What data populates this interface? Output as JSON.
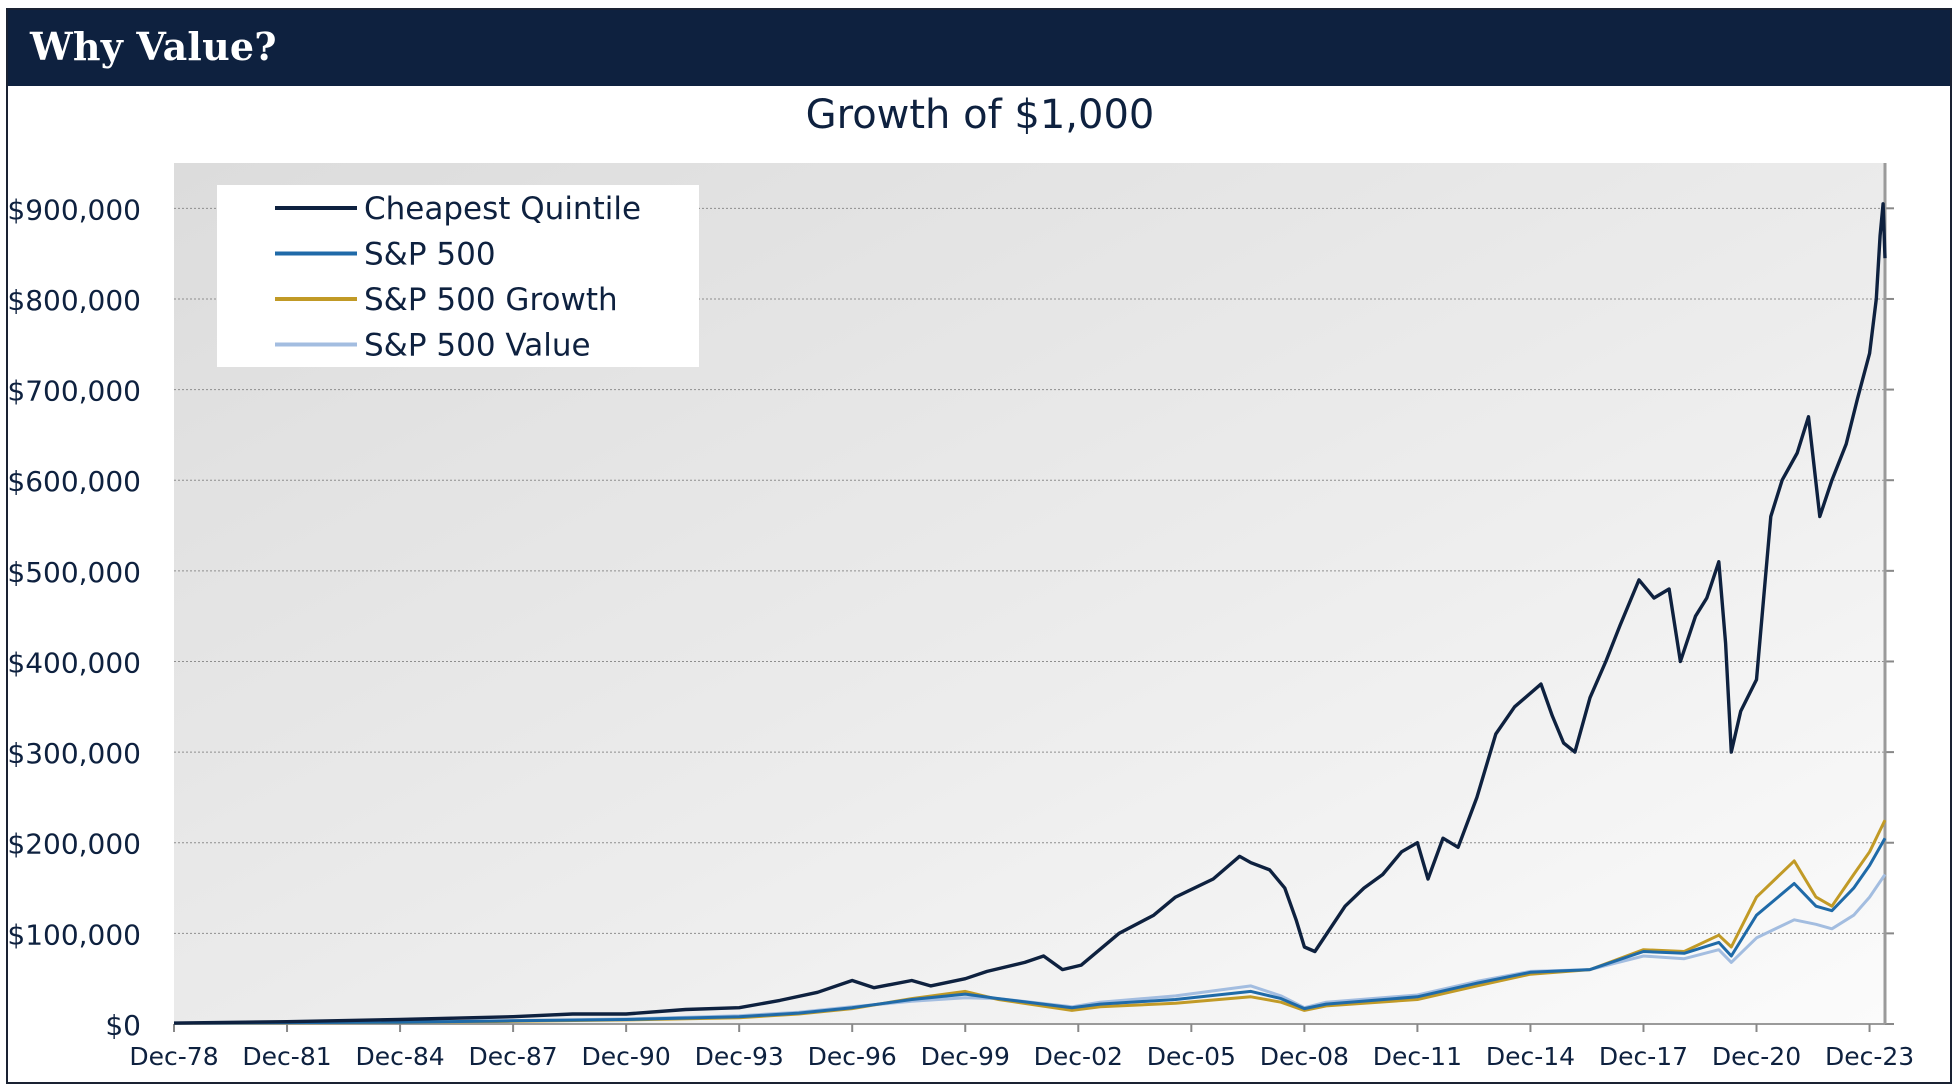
{
  "header": {
    "title": "Why Value?"
  },
  "chart_data": {
    "type": "line",
    "title": "Growth of $1,000",
    "xlabel": "",
    "ylabel": "",
    "ylim": [
      0,
      950000
    ],
    "y_ticks": [
      0,
      100000,
      200000,
      300000,
      400000,
      500000,
      600000,
      700000,
      800000,
      900000
    ],
    "y_tick_labels": [
      "$0",
      "$100,000",
      "$200,000",
      "$300,000",
      "$400,000",
      "$500,000",
      "$600,000",
      "$700,000",
      "$800,000",
      "$900,000"
    ],
    "x_range": [
      1978.92,
      2024.33
    ],
    "x_ticks": [
      1978.92,
      1981.92,
      1984.92,
      1987.92,
      1990.92,
      1993.92,
      1996.92,
      1999.92,
      2002.92,
      2005.92,
      2008.92,
      2011.92,
      2014.92,
      2017.92,
      2020.92,
      2023.92
    ],
    "x_tick_labels": [
      "Dec-78",
      "Dec-81",
      "Dec-84",
      "Dec-87",
      "Dec-90",
      "Dec-93",
      "Dec-96",
      "Dec-99",
      "Dec-02",
      "Dec-05",
      "Dec-08",
      "Dec-11",
      "Dec-14",
      "Dec-17",
      "Dec-20",
      "Dec-23"
    ],
    "grid": "horizontal dotted",
    "legend_position": "top-left",
    "series": [
      {
        "name": "Cheapest Quintile",
        "color": "#0e213f",
        "points": [
          [
            1978.92,
            1000
          ],
          [
            1981.92,
            2500
          ],
          [
            1984.92,
            5000
          ],
          [
            1987.92,
            8000
          ],
          [
            1989.5,
            11000
          ],
          [
            1990.92,
            11000
          ],
          [
            1992.5,
            16000
          ],
          [
            1993.92,
            18000
          ],
          [
            1995.0,
            26000
          ],
          [
            1996.0,
            35000
          ],
          [
            1996.92,
            48000
          ],
          [
            1997.5,
            40000
          ],
          [
            1998.5,
            48000
          ],
          [
            1999.0,
            42000
          ],
          [
            1999.92,
            50000
          ],
          [
            2000.5,
            58000
          ],
          [
            2001.5,
            68000
          ],
          [
            2002.0,
            75000
          ],
          [
            2002.5,
            60000
          ],
          [
            2003.0,
            65000
          ],
          [
            2004.0,
            100000
          ],
          [
            2004.92,
            120000
          ],
          [
            2005.5,
            140000
          ],
          [
            2006.5,
            160000
          ],
          [
            2007.2,
            185000
          ],
          [
            2007.5,
            178000
          ],
          [
            2008.0,
            170000
          ],
          [
            2008.4,
            150000
          ],
          [
            2008.7,
            115000
          ],
          [
            2008.92,
            85000
          ],
          [
            2009.2,
            80000
          ],
          [
            2010.0,
            130000
          ],
          [
            2010.5,
            150000
          ],
          [
            2011.0,
            165000
          ],
          [
            2011.5,
            190000
          ],
          [
            2011.92,
            200000
          ],
          [
            2012.2,
            160000
          ],
          [
            2012.6,
            205000
          ],
          [
            2013.0,
            195000
          ],
          [
            2013.5,
            250000
          ],
          [
            2014.0,
            320000
          ],
          [
            2014.5,
            350000
          ],
          [
            2015.2,
            375000
          ],
          [
            2015.5,
            340000
          ],
          [
            2015.8,
            310000
          ],
          [
            2016.1,
            300000
          ],
          [
            2016.5,
            360000
          ],
          [
            2016.92,
            400000
          ],
          [
            2017.3,
            440000
          ],
          [
            2017.8,
            490000
          ],
          [
            2018.2,
            470000
          ],
          [
            2018.6,
            480000
          ],
          [
            2018.9,
            400000
          ],
          [
            2019.3,
            450000
          ],
          [
            2019.6,
            470000
          ],
          [
            2019.92,
            510000
          ],
          [
            2020.1,
            420000
          ],
          [
            2020.25,
            300000
          ],
          [
            2020.5,
            345000
          ],
          [
            2020.92,
            380000
          ],
          [
            2021.3,
            560000
          ],
          [
            2021.6,
            600000
          ],
          [
            2022.0,
            630000
          ],
          [
            2022.3,
            670000
          ],
          [
            2022.6,
            560000
          ],
          [
            2022.92,
            600000
          ],
          [
            2023.3,
            640000
          ],
          [
            2023.6,
            690000
          ],
          [
            2023.92,
            740000
          ],
          [
            2024.1,
            800000
          ],
          [
            2024.2,
            870000
          ],
          [
            2024.28,
            905000
          ],
          [
            2024.33,
            845000
          ]
        ]
      },
      {
        "name": "S&P 500",
        "color": "#1f6aa8",
        "points": [
          [
            1978.92,
            1000
          ],
          [
            1984.92,
            2000
          ],
          [
            1987.92,
            3500
          ],
          [
            1990.92,
            5000
          ],
          [
            1993.92,
            8000
          ],
          [
            1995.5,
            12000
          ],
          [
            1996.92,
            18000
          ],
          [
            1998.5,
            27000
          ],
          [
            1999.92,
            33000
          ],
          [
            2000.8,
            28000
          ],
          [
            2002.75,
            18000
          ],
          [
            2003.5,
            22000
          ],
          [
            2005.5,
            27000
          ],
          [
            2007.5,
            36000
          ],
          [
            2008.3,
            28000
          ],
          [
            2008.92,
            17000
          ],
          [
            2009.5,
            22000
          ],
          [
            2011.92,
            30000
          ],
          [
            2013.5,
            45000
          ],
          [
            2014.92,
            57000
          ],
          [
            2016.5,
            60000
          ],
          [
            2017.92,
            80000
          ],
          [
            2019.0,
            78000
          ],
          [
            2019.92,
            90000
          ],
          [
            2020.25,
            75000
          ],
          [
            2020.92,
            120000
          ],
          [
            2021.92,
            155000
          ],
          [
            2022.5,
            130000
          ],
          [
            2022.92,
            125000
          ],
          [
            2023.5,
            150000
          ],
          [
            2023.92,
            175000
          ],
          [
            2024.33,
            205000
          ]
        ]
      },
      {
        "name": "S&P 500 Growth",
        "color": "#c19a26",
        "points": [
          [
            1978.92,
            1000
          ],
          [
            1984.92,
            1800
          ],
          [
            1987.92,
            3000
          ],
          [
            1990.92,
            4500
          ],
          [
            1993.92,
            7000
          ],
          [
            1995.5,
            11000
          ],
          [
            1996.92,
            17000
          ],
          [
            1998.5,
            28000
          ],
          [
            1999.92,
            36000
          ],
          [
            2000.8,
            27000
          ],
          [
            2002.75,
            15000
          ],
          [
            2003.5,
            19000
          ],
          [
            2005.5,
            23000
          ],
          [
            2007.5,
            30000
          ],
          [
            2008.3,
            24000
          ],
          [
            2008.92,
            15000
          ],
          [
            2009.5,
            20000
          ],
          [
            2011.92,
            27000
          ],
          [
            2013.5,
            42000
          ],
          [
            2014.92,
            55000
          ],
          [
            2016.5,
            60000
          ],
          [
            2017.92,
            82000
          ],
          [
            2019.0,
            80000
          ],
          [
            2019.92,
            98000
          ],
          [
            2020.25,
            85000
          ],
          [
            2020.92,
            140000
          ],
          [
            2021.92,
            180000
          ],
          [
            2022.5,
            140000
          ],
          [
            2022.92,
            130000
          ],
          [
            2023.5,
            165000
          ],
          [
            2023.92,
            190000
          ],
          [
            2024.33,
            225000
          ]
        ]
      },
      {
        "name": "S&P 500 Value",
        "color": "#a3bde0",
        "points": [
          [
            1978.92,
            1000
          ],
          [
            1984.92,
            2200
          ],
          [
            1987.92,
            3800
          ],
          [
            1990.92,
            5500
          ],
          [
            1993.92,
            9000
          ],
          [
            1995.5,
            13000
          ],
          [
            1996.92,
            19000
          ],
          [
            1998.5,
            25000
          ],
          [
            1999.92,
            29000
          ],
          [
            2000.8,
            28000
          ],
          [
            2002.75,
            19000
          ],
          [
            2003.5,
            24000
          ],
          [
            2005.5,
            31000
          ],
          [
            2007.5,
            42000
          ],
          [
            2008.3,
            31000
          ],
          [
            2008.92,
            18000
          ],
          [
            2009.5,
            24000
          ],
          [
            2011.92,
            32000
          ],
          [
            2013.5,
            47000
          ],
          [
            2014.92,
            58000
          ],
          [
            2016.5,
            60000
          ],
          [
            2017.92,
            75000
          ],
          [
            2019.0,
            72000
          ],
          [
            2019.92,
            82000
          ],
          [
            2020.25,
            68000
          ],
          [
            2020.92,
            95000
          ],
          [
            2021.92,
            115000
          ],
          [
            2022.5,
            110000
          ],
          [
            2022.92,
            105000
          ],
          [
            2023.5,
            120000
          ],
          [
            2023.92,
            140000
          ],
          [
            2024.33,
            165000
          ]
        ]
      }
    ]
  }
}
